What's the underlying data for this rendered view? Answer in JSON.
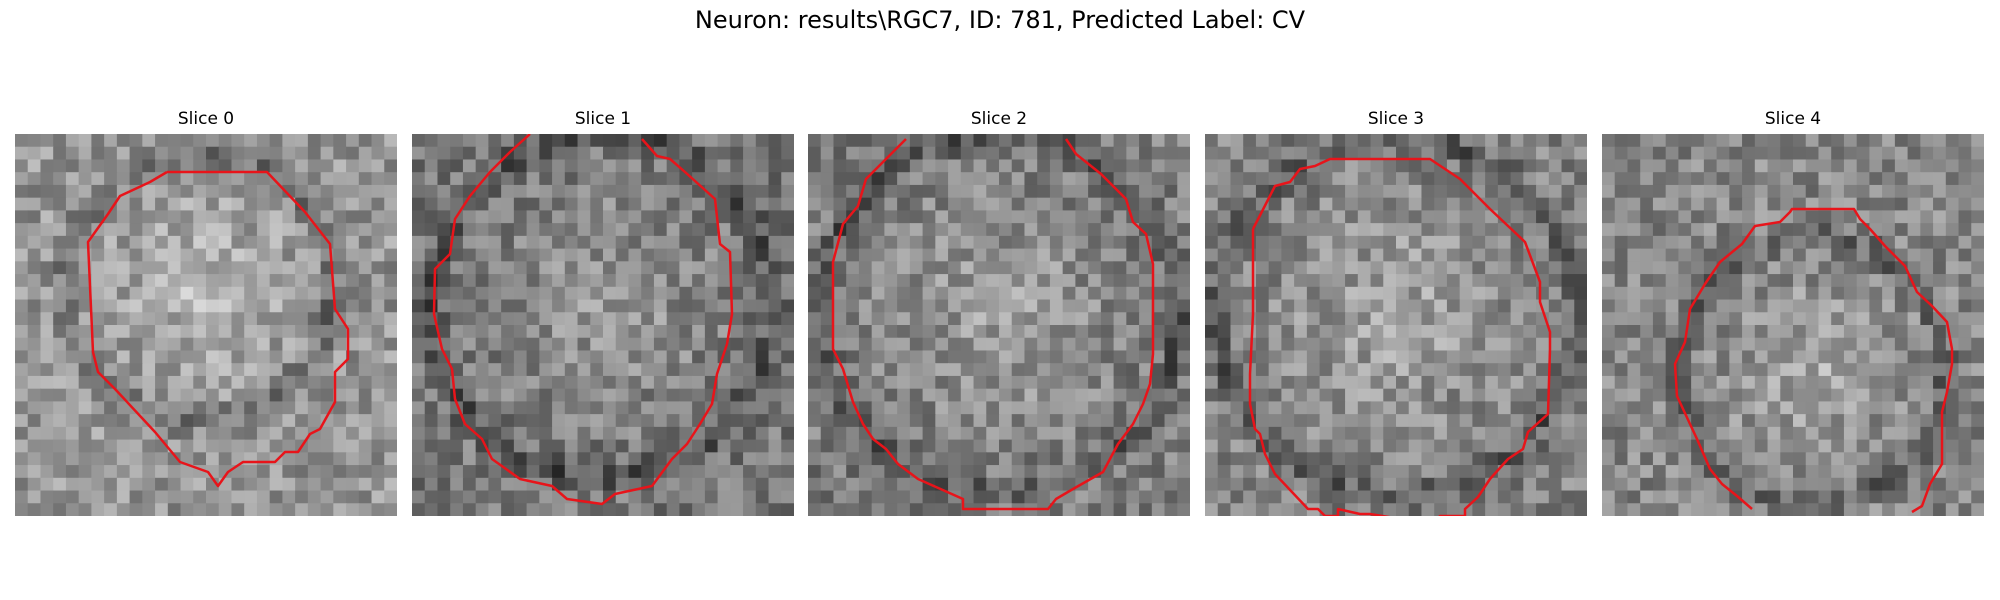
{
  "figure": {
    "title": "Neuron: results\\RGC7, ID: 781, Predicted Label: CV"
  },
  "panels": [
    {
      "title": "Slice 0"
    },
    {
      "title": "Slice 1"
    },
    {
      "title": "Slice 2"
    },
    {
      "title": "Slice 3"
    },
    {
      "title": "Slice 4"
    }
  ],
  "contour_color": "#e8141a"
}
